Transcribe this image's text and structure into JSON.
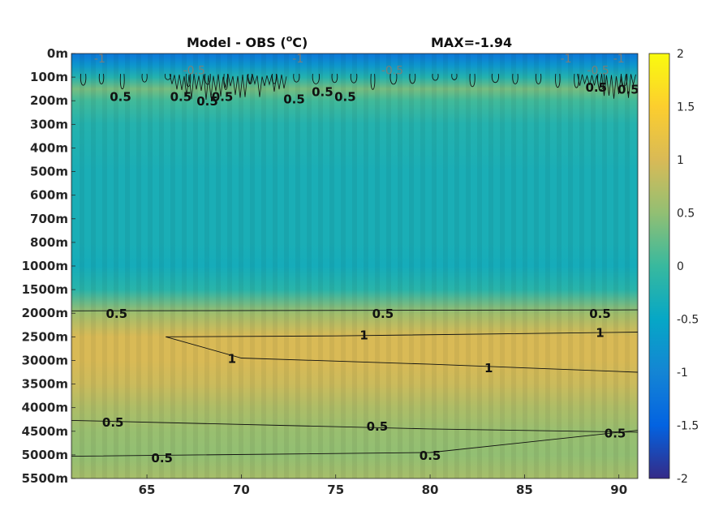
{
  "chart_data": {
    "type": "heatmap",
    "title": "Model - OBS (°C)",
    "title_parts": {
      "prefix": "Model - OBS (",
      "superscript": "o",
      "suffix": "C)"
    },
    "annotation": "MAX=-1.94",
    "xlabel": "",
    "ylabel": "",
    "x_ticks": [
      65,
      70,
      75,
      80,
      85,
      90
    ],
    "xlim": [
      61,
      91
    ],
    "y_tick_labels": [
      "0m",
      "100m",
      "200m",
      "300m",
      "400m",
      "500m",
      "600m",
      "700m",
      "800m",
      "1000m",
      "1500m",
      "2000m",
      "2500m",
      "3000m",
      "3500m",
      "4000m",
      "4500m",
      "5000m",
      "5500m"
    ],
    "y_scale": "stretched depth axis (labels evenly spaced)",
    "colorbar": {
      "colormap": "parula",
      "limits": [
        -2,
        2
      ],
      "ticks": [
        "2",
        "1.5",
        "1",
        "0.5",
        "0",
        "-0.5",
        "-1",
        "-1.5",
        "-2"
      ]
    },
    "depth_profile": [
      {
        "depth": "0m",
        "value": -1.2
      },
      {
        "depth": "50m",
        "value": -0.75
      },
      {
        "depth": "100m",
        "value": -0.2
      },
      {
        "depth": "150m",
        "value": 0.35
      },
      {
        "depth": "200m",
        "value": 0.05
      },
      {
        "depth": "300m",
        "value": -0.2
      },
      {
        "depth": "500m",
        "value": -0.3
      },
      {
        "depth": "800m",
        "value": -0.3
      },
      {
        "depth": "1000m",
        "value": -0.35
      },
      {
        "depth": "1500m",
        "value": -0.15
      },
      {
        "depth": "2000m",
        "value": 0.6
      },
      {
        "depth": "2500m",
        "value": 1.0
      },
      {
        "depth": "3000m",
        "value": 1.0
      },
      {
        "depth": "3500m",
        "value": 0.9
      },
      {
        "depth": "4000m",
        "value": 0.7
      },
      {
        "depth": "4500m",
        "value": 0.55
      },
      {
        "depth": "5000m",
        "value": 0.5
      },
      {
        "depth": "5500m",
        "value": 0.65
      }
    ],
    "contours": [
      {
        "level": 0.5,
        "points": [
          [
            61,
            "1950m"
          ],
          [
            91,
            "1930m"
          ]
        ]
      },
      {
        "level": 1,
        "points": [
          [
            66,
            "2500m"
          ],
          [
            75,
            "2480m"
          ],
          [
            91,
            "2400m"
          ]
        ]
      },
      {
        "level": 1,
        "points": [
          [
            66,
            "2500m"
          ],
          [
            70,
            "2950m"
          ],
          [
            80,
            "3080m"
          ],
          [
            91,
            "3250m"
          ]
        ]
      },
      {
        "level": 0.5,
        "points": [
          [
            61,
            "4270m"
          ],
          [
            80,
            "4450m"
          ],
          [
            91,
            "4520m"
          ]
        ]
      },
      {
        "level": 0.5,
        "points": [
          [
            61,
            "5030m"
          ],
          [
            80,
            "4950m"
          ],
          [
            91,
            "4480m"
          ]
        ]
      }
    ],
    "contour_labels": [
      {
        "text": "0.5",
        "x": 63.4,
        "depth": "2000m"
      },
      {
        "text": "0.5",
        "x": 77.5,
        "depth": "2000m"
      },
      {
        "text": "0.5",
        "x": 89.0,
        "depth": "2000m"
      },
      {
        "text": "1",
        "x": 76.5,
        "depth": "2450m"
      },
      {
        "text": "1",
        "x": 89.0,
        "depth": "2400m"
      },
      {
        "text": "1",
        "x": 69.5,
        "depth": "2950m"
      },
      {
        "text": "1",
        "x": 83.1,
        "depth": "3150m"
      },
      {
        "text": "0.5",
        "x": 63.2,
        "depth": "4300m"
      },
      {
        "text": "0.5",
        "x": 77.2,
        "depth": "4380m"
      },
      {
        "text": "0.5",
        "x": 89.8,
        "depth": "4530m"
      },
      {
        "text": "0.5",
        "x": 65.8,
        "depth": "5050m"
      },
      {
        "text": "0.5",
        "x": 80.0,
        "depth": "5000m"
      },
      {
        "text": "0.5",
        "x": 63.6,
        "depth": "180m"
      },
      {
        "text": "0.5",
        "x": 66.8,
        "depth": "180m"
      },
      {
        "text": "0.5",
        "x": 68.2,
        "depth": "200m"
      },
      {
        "text": "0.5",
        "x": 69.0,
        "depth": "180m"
      },
      {
        "text": "0.5",
        "x": 72.8,
        "depth": "190m"
      },
      {
        "text": "0.5",
        "x": 74.3,
        "depth": "160m"
      },
      {
        "text": "0.5",
        "x": 75.5,
        "depth": "180m"
      },
      {
        "text": "0.5",
        "x": 88.8,
        "depth": "140m"
      },
      {
        "text": "0.5",
        "x": 90.5,
        "depth": "150m"
      }
    ],
    "faint_labels": [
      {
        "text": "-1",
        "x": 62.5,
        "depth": "0m"
      },
      {
        "text": "-0.5",
        "x": 67.5,
        "depth": "50m"
      },
      {
        "text": "-1",
        "x": 73.0,
        "depth": "0m"
      },
      {
        "text": "-0.5",
        "x": 78.0,
        "depth": "50m"
      },
      {
        "text": "-1",
        "x": 87.2,
        "depth": "0m"
      },
      {
        "text": "-0.5",
        "x": 88.9,
        "depth": "50m"
      },
      {
        "text": "-1",
        "x": 90.0,
        "depth": "0m"
      }
    ],
    "grid": false,
    "legend": "colorbar-right"
  }
}
